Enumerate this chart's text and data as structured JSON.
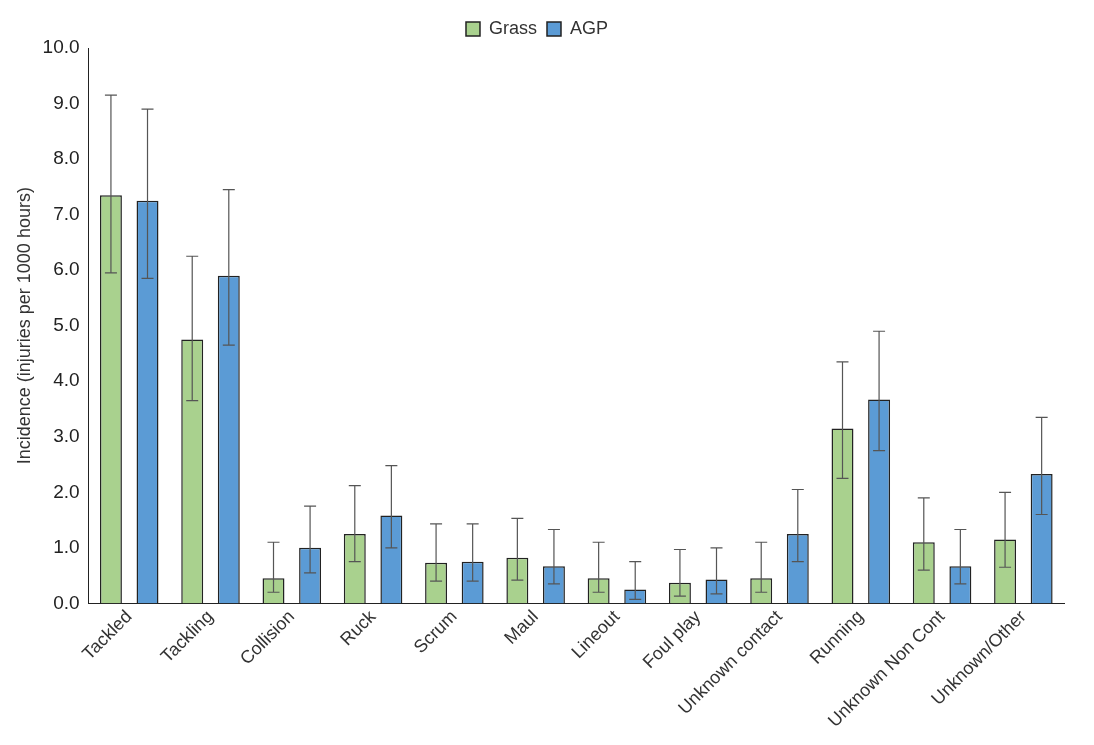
{
  "chart_data": {
    "type": "bar",
    "ylabel": "Incidence (injuries per 1000 hours)",
    "categories": [
      "Tackled",
      "Tackling",
      "Collision",
      "Ruck",
      "Scrum",
      "Maul",
      "Lineout",
      "Foul play",
      "Unknown contact",
      "Running",
      "Unknown Non Cont",
      "Unknown/Other"
    ],
    "series": [
      {
        "name": "Grass",
        "color": "#a9d18e",
        "values": [
          7.35,
          4.75,
          0.45,
          1.25,
          0.73,
          0.82,
          0.45,
          0.37,
          0.45,
          3.15,
          1.1,
          1.15
        ],
        "errors": [
          [
            5.95,
            9.15
          ],
          [
            3.65,
            6.25
          ],
          [
            0.2,
            1.1
          ],
          [
            0.75,
            2.12
          ],
          [
            0.4,
            1.43
          ],
          [
            0.42,
            1.53
          ],
          [
            0.2,
            1.1
          ],
          [
            0.13,
            0.97
          ],
          [
            0.2,
            1.1
          ],
          [
            2.25,
            4.35
          ],
          [
            0.6,
            1.9
          ],
          [
            0.65,
            2.0
          ]
        ]
      },
      {
        "name": "AGP",
        "color": "#5b9bd5",
        "values": [
          7.25,
          5.9,
          1.0,
          1.58,
          0.75,
          0.67,
          0.25,
          0.43,
          1.25,
          3.67,
          0.67,
          2.33
        ],
        "errors": [
          [
            5.85,
            8.9
          ],
          [
            4.65,
            7.45
          ],
          [
            0.55,
            1.75
          ],
          [
            1.0,
            2.48
          ],
          [
            0.4,
            1.43
          ],
          [
            0.35,
            1.33
          ],
          [
            0.07,
            0.75
          ],
          [
            0.17,
            1.0
          ],
          [
            0.75,
            2.05
          ],
          [
            2.75,
            4.9
          ],
          [
            0.35,
            1.33
          ],
          [
            1.6,
            3.35
          ]
        ]
      }
    ],
    "ylim": [
      0,
      10
    ],
    "yticks": [
      {
        "value": 0,
        "label": "0.0"
      },
      {
        "value": 1,
        "label": "1.0"
      },
      {
        "value": 2,
        "label": "2.0"
      },
      {
        "value": 3,
        "label": "3.0"
      },
      {
        "value": 4,
        "label": "4.0"
      },
      {
        "value": 5,
        "label": "5.0"
      },
      {
        "value": 6,
        "label": "6.0"
      },
      {
        "value": 7,
        "label": "7.0"
      },
      {
        "value": 8,
        "label": "8.0"
      },
      {
        "value": 9,
        "label": "9.0"
      },
      {
        "value": 10,
        "label": "10.0"
      }
    ],
    "grid": false,
    "legend": "top"
  }
}
